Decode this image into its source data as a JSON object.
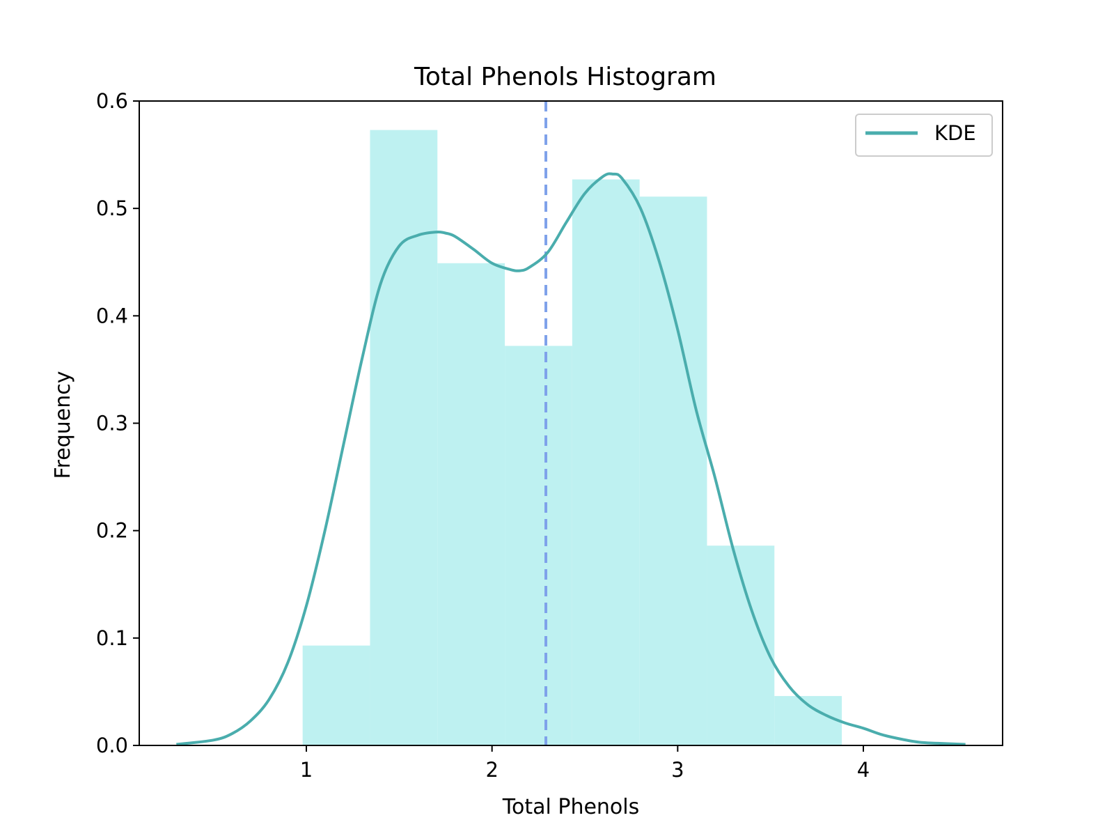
{
  "chart_data": {
    "type": "bar",
    "title": "Total Phenols Histogram",
    "xlabel": "Total Phenols",
    "ylabel": "Frequency",
    "xlim": [
      0.1,
      4.75
    ],
    "ylim": [
      0.0,
      0.6
    ],
    "xticks": [
      1,
      2,
      3,
      4
    ],
    "yticks": [
      0.0,
      0.1,
      0.2,
      0.3,
      0.4,
      0.5,
      0.6
    ],
    "grid": false,
    "legend_position": "top-right",
    "histogram": {
      "bin_edges": [
        0.98,
        1.343,
        1.706,
        2.069,
        2.432,
        2.795,
        3.158,
        3.521,
        3.884
      ],
      "values": [
        0.093,
        0.573,
        0.449,
        0.372,
        0.527,
        0.511,
        0.186,
        0.046
      ],
      "color": "#BEF1F1"
    },
    "series": [
      {
        "name": "KDE",
        "type": "line",
        "color": "#4AADAD",
        "x": [
          0.3,
          0.5,
          0.6,
          0.7,
          0.8,
          0.9,
          1.0,
          1.1,
          1.2,
          1.3,
          1.4,
          1.5,
          1.6,
          1.7,
          1.75,
          1.8,
          1.9,
          2.0,
          2.1,
          2.15,
          2.2,
          2.3,
          2.4,
          2.5,
          2.6,
          2.65,
          2.7,
          2.8,
          2.9,
          3.0,
          3.1,
          3.2,
          3.3,
          3.4,
          3.5,
          3.6,
          3.7,
          3.8,
          3.9,
          4.0,
          4.1,
          4.2,
          4.3,
          4.4,
          4.55
        ],
        "y": [
          0.001,
          0.005,
          0.011,
          0.023,
          0.043,
          0.077,
          0.13,
          0.2,
          0.28,
          0.36,
          0.43,
          0.465,
          0.475,
          0.478,
          0.477,
          0.474,
          0.462,
          0.449,
          0.443,
          0.442,
          0.445,
          0.459,
          0.487,
          0.514,
          0.53,
          0.532,
          0.528,
          0.5,
          0.451,
          0.387,
          0.312,
          0.25,
          0.182,
          0.125,
          0.082,
          0.055,
          0.038,
          0.028,
          0.021,
          0.016,
          0.01,
          0.006,
          0.003,
          0.002,
          0.001
        ]
      }
    ],
    "vline": {
      "x": 2.29,
      "color": "#7FA2EA",
      "style": "dashed"
    }
  }
}
